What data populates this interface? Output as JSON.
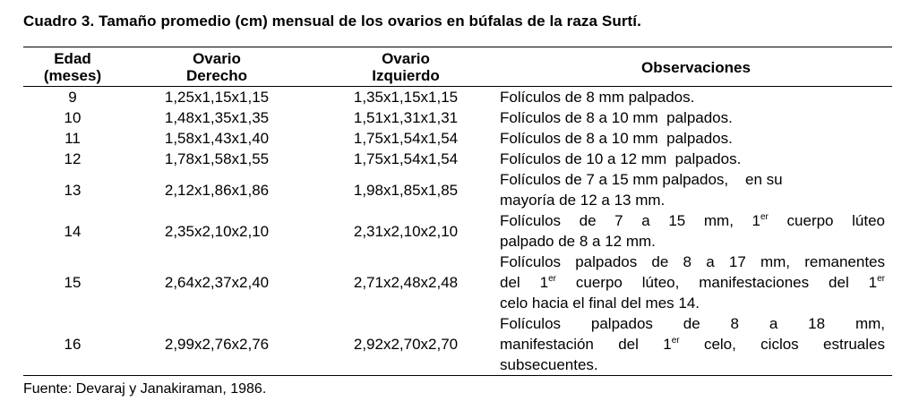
{
  "caption": "Cuadro 3. Tamaño promedio (cm) mensual de los ovarios en búfalas de la raza Surtí.",
  "headers": {
    "age_l1": "Edad",
    "age_l2": "(meses)",
    "right_l1": "Ovario",
    "right_l2": "Derecho",
    "left_l1": "Ovario",
    "left_l2": "Izquierdo",
    "obs": "Observaciones"
  },
  "rows": [
    {
      "age": "9",
      "right": "1,25x1,15x1,15",
      "left": "1,35x1,15x1,15",
      "obs": [
        "Folículos de 8 mm palpados."
      ]
    },
    {
      "age": "10",
      "right": "1,48x1,35x1,35",
      "left": "1,51x1,31x1,31",
      "obs": [
        "Folículos de 8 a 10 mm  palpados."
      ]
    },
    {
      "age": "11",
      "right": "1,58x1,43x1,40",
      "left": "1,75x1,54x1,54",
      "obs": [
        "Folículos de 8 a 10 mm  palpados."
      ]
    },
    {
      "age": "12",
      "right": "1,78x1,58x1,55",
      "left": "1,75x1,54x1,54",
      "obs": [
        "Folículos de 10 a 12 mm  palpados."
      ]
    },
    {
      "age": "13",
      "right": "2,12x1,86x1,86",
      "left": "1,98x1,85x1,85",
      "obs": [
        "Folículos de 7 a 15 mm palpados,    en su",
        "mayoría de 12 a 13 mm."
      ]
    },
    {
      "age": "14",
      "right": "2,35x2,10x2,10",
      "left": "2,31x2,10x2,10",
      "obs_a": "Folículos de 7 a 15 mm, 1",
      "obs_sup": "er",
      "obs_b": " cuerpo lúteo",
      "obs_l2": "palpado de 8 a 12 mm."
    },
    {
      "age": "15",
      "right": "2,64x2,37x2,40",
      "left": "2,71x2,48x2,48",
      "obs_l1": "Folículos palpados de 8 a 17 mm, remanentes",
      "obs_l2a": "del 1",
      "obs_sup1": "er",
      "obs_l2b": " cuerpo lúteo, manifestaciones del 1",
      "obs_sup2": "er",
      "obs_l3": "celo hacia el final del mes 14."
    },
    {
      "age": "16",
      "right": "2,99x2,76x2,76",
      "left": "2,92x2,70x2,70",
      "obs_l1": "Folículos  palpados  de  8  a  18  mm,",
      "obs_l2a": "manifestación del 1",
      "obs_sup": "er",
      "obs_l2b": " celo, ciclos estruales",
      "obs_l3": "subsecuentes."
    }
  ],
  "source": "Fuente: Devaraj y Janakiraman, 1986."
}
